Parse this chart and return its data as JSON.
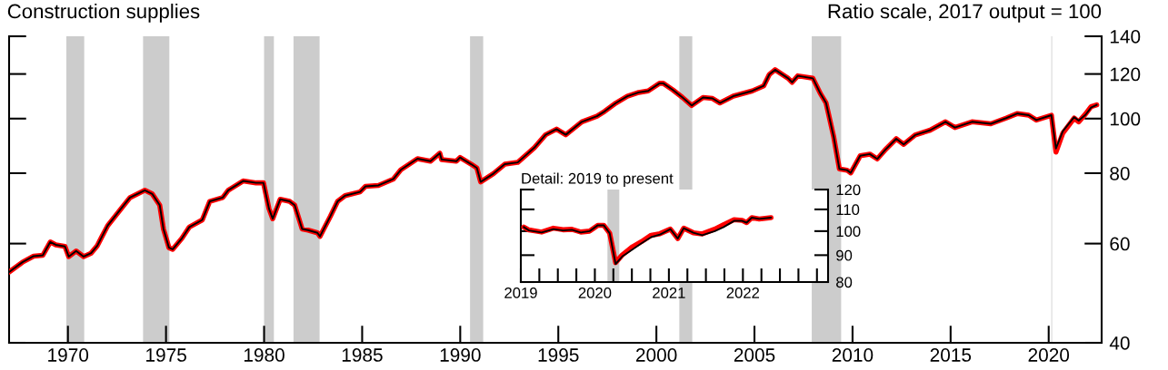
{
  "chart_data": [
    {
      "type": "line",
      "title": "Construction supplies",
      "subtitle": "Ratio scale, 2017 output = 100",
      "x": [
        1967.0,
        1967.68,
        1968.25,
        1968.72,
        1969.1,
        1969.38,
        1969.85,
        1970.04,
        1970.42,
        1970.8,
        1971.18,
        1971.5,
        1971.74,
        1972.03,
        1972.78,
        1973.16,
        1973.92,
        1974.3,
        1974.68,
        1974.87,
        1975.15,
        1975.34,
        1975.81,
        1976.19,
        1976.85,
        1977.23,
        1977.89,
        1978.17,
        1978.93,
        1979.59,
        1979.97,
        1980.25,
        1980.44,
        1980.82,
        1981.3,
        1981.56,
        1981.94,
        1982.24,
        1982.72,
        1982.85,
        1983.38,
        1983.75,
        1984.13,
        1984.89,
        1985.17,
        1985.83,
        1986.59,
        1986.97,
        1987.82,
        1988.48,
        1988.96,
        1989.05,
        1989.8,
        1989.99,
        1990.56,
        1990.85,
        1991.04,
        1991.7,
        1992.27,
        1992.93,
        1993.78,
        1994.35,
        1994.91,
        1995.38,
        1996.2,
        1996.97,
        1997.36,
        1997.94,
        1998.52,
        1999.1,
        1999.58,
        2000.16,
        2000.35,
        2000.83,
        2001.32,
        2001.8,
        2002.38,
        2002.86,
        2003.24,
        2003.92,
        2004.89,
        2005.47,
        2005.76,
        2006.05,
        2006.72,
        2006.92,
        2007.21,
        2007.98,
        2008.36,
        2008.65,
        2009.04,
        2009.33,
        2009.72,
        2009.91,
        2010.39,
        2010.88,
        2011.26,
        2011.65,
        2012.23,
        2012.61,
        2013.19,
        2013.96,
        2014.74,
        2015.22,
        2016.09,
        2017.05,
        2017.83,
        2018.41,
        2018.98,
        2019.37,
        2020.14,
        2020.37,
        2020.72,
        2021.3,
        2021.53,
        2021.88,
        2022.16,
        2022.45
      ],
      "series": [
        {
          "color": "#ff0000",
          "values": [
            53.4,
            55.6,
            57.0,
            57.2,
            60.4,
            59.7,
            59.3,
            56.9,
            58.2,
            56.9,
            57.7,
            59.5,
            61.8,
            64.6,
            69.7,
            72.4,
            74.6,
            73.5,
            70.2,
            63.7,
            59.0,
            58.6,
            61.3,
            64.2,
            66.1,
            71.3,
            72.4,
            74.6,
            77.5,
            76.9,
            76.9,
            69.2,
            66.4,
            71.9,
            71.3,
            70.2,
            63.7,
            63.4,
            62.7,
            61.8,
            67.1,
            71.3,
            73.0,
            74.1,
            75.8,
            76.1,
            78.1,
            81.1,
            84.9,
            84.0,
            86.8,
            84.6,
            84.0,
            85.3,
            83.0,
            81.7,
            77.2,
            79.9,
            83.0,
            83.6,
            88.8,
            93.6,
            95.8,
            93.6,
            98.7,
            101.0,
            103.0,
            106.6,
            109.6,
            111.3,
            112.0,
            115.5,
            115.5,
            112.5,
            109.1,
            105.5,
            109.0,
            108.6,
            106.6,
            109.6,
            112.0,
            114.3,
            119.8,
            122.1,
            117.9,
            116.0,
            119.1,
            117.9,
            110.8,
            106.6,
            92.8,
            81.4,
            81.0,
            80.1,
            85.9,
            86.5,
            84.8,
            87.9,
            92.1,
            90.0,
            93.5,
            95.4,
            98.7,
            96.4,
            98.7,
            97.9,
            100.2,
            102.1,
            101.4,
            99.4,
            101.4,
            87.2,
            94.2,
            100.2,
            98.7,
            101.9,
            105.0,
            105.8
          ]
        },
        {
          "color": "#000000",
          "values": [
            53.4,
            55.6,
            57.0,
            57.2,
            60.4,
            59.7,
            59.3,
            56.9,
            58.2,
            56.9,
            57.7,
            59.5,
            61.8,
            64.6,
            69.7,
            72.4,
            74.6,
            73.5,
            70.2,
            63.7,
            59.0,
            58.6,
            61.3,
            64.2,
            66.1,
            71.3,
            72.4,
            74.6,
            77.5,
            76.9,
            76.9,
            69.2,
            66.4,
            71.9,
            71.3,
            70.2,
            63.7,
            63.4,
            62.7,
            61.8,
            67.1,
            71.3,
            73.0,
            74.1,
            75.8,
            76.1,
            78.1,
            81.1,
            84.9,
            84.0,
            86.8,
            84.6,
            84.0,
            85.3,
            83.0,
            81.7,
            77.2,
            79.9,
            83.0,
            83.6,
            88.8,
            93.6,
            95.8,
            93.6,
            98.7,
            101.0,
            103.0,
            106.6,
            109.6,
            111.3,
            112.0,
            115.5,
            115.5,
            112.5,
            109.1,
            105.5,
            109.0,
            108.6,
            106.6,
            109.6,
            112.0,
            114.3,
            119.8,
            122.1,
            117.9,
            116.0,
            119.1,
            117.9,
            110.8,
            106.6,
            92.8,
            81.4,
            81.0,
            80.1,
            85.9,
            86.5,
            84.8,
            87.9,
            92.1,
            90.0,
            93.5,
            95.4,
            98.7,
            96.4,
            98.7,
            97.9,
            100.2,
            102.1,
            101.4,
            99.4,
            101.4,
            88.5,
            95.0,
            100.6,
            99.2,
            101.6,
            104.6,
            105.8
          ]
        }
      ],
      "xlim": [
        1967,
        2022.7
      ],
      "xticks": [
        1970,
        1975,
        1980,
        1985,
        1990,
        1995,
        2000,
        2005,
        2010,
        2015,
        2020
      ],
      "ylim": [
        40,
        140
      ],
      "yticks": [
        40,
        60,
        80,
        100,
        120,
        140
      ],
      "log": "y",
      "bands": [
        {
          "axis": "x",
          "from": 1969.92,
          "to": 1970.83,
          "color": "#cccccc"
        },
        {
          "axis": "x",
          "from": 1973.83,
          "to": 1975.17,
          "color": "#cccccc"
        },
        {
          "axis": "x",
          "from": 1980.0,
          "to": 1980.5,
          "color": "#cccccc"
        },
        {
          "axis": "x",
          "from": 1981.5,
          "to": 1982.83,
          "color": "#cccccc"
        },
        {
          "axis": "x",
          "from": 1990.5,
          "to": 1991.17,
          "color": "#cccccc"
        },
        {
          "axis": "x",
          "from": 2001.17,
          "to": 2001.83,
          "color": "#cccccc"
        },
        {
          "axis": "x",
          "from": 2007.92,
          "to": 2009.42,
          "color": "#cccccc"
        },
        {
          "axis": "x",
          "from": 2020.12,
          "to": 2020.2,
          "color": "#e6e6e6"
        }
      ]
    },
    {
      "type": "line",
      "title": "Detail: 2019 to present",
      "x": [
        2019.04,
        2019.11,
        2019.28,
        2019.44,
        2019.57,
        2019.69,
        2019.81,
        2019.93,
        2020.04,
        2020.12,
        2020.2,
        2020.28,
        2020.37,
        2020.51,
        2020.63,
        2020.76,
        2020.88,
        2021.02,
        2021.12,
        2021.2,
        2021.33,
        2021.45,
        2021.62,
        2021.74,
        2021.88,
        2021.99,
        2022.05,
        2022.12,
        2022.22,
        2022.38
      ],
      "series": [
        {
          "color": "#ff0000",
          "values": [
            101.8,
            100.5,
            99.6,
            101.3,
            100.6,
            100.8,
            99.6,
            100.0,
            102.6,
            102.6,
            99.1,
            87.1,
            90.1,
            93.4,
            95.5,
            98.2,
            98.9,
            100.9,
            96.8,
            101.3,
            99.3,
            98.8,
            100.9,
            102.9,
            105.1,
            104.8,
            103.8,
            106.1,
            105.5,
            106.1
          ]
        },
        {
          "color": "#000000",
          "values": [
            101.8,
            100.3,
            99.4,
            100.9,
            100.3,
            100.6,
            99.4,
            100.0,
            102.6,
            102.6,
            99.1,
            86.6,
            89.5,
            92.3,
            94.8,
            97.4,
            98.5,
            100.9,
            96.8,
            101.3,
            99.3,
            98.2,
            100.0,
            101.8,
            104.6,
            104.6,
            103.8,
            106.1,
            105.5,
            106.1
          ]
        }
      ],
      "xlim": [
        2019,
        2023.15
      ],
      "xticks": [
        2019,
        {
          "value": 2019.25,
          "label": null
        },
        {
          "value": 2019.5,
          "label": null
        },
        {
          "value": 2019.75,
          "label": null
        },
        2020,
        {
          "value": 2020.25,
          "label": null
        },
        {
          "value": 2020.5,
          "label": null
        },
        {
          "value": 2020.75,
          "label": null
        },
        2021,
        {
          "value": 2021.25,
          "label": null
        },
        {
          "value": 2021.5,
          "label": null
        },
        {
          "value": 2021.75,
          "label": null
        },
        2022,
        {
          "value": 2022.25,
          "label": null
        },
        {
          "value": 2022.5,
          "label": null
        },
        {
          "value": 2022.75,
          "label": null
        },
        {
          "value": 2023,
          "label": null
        }
      ],
      "ylim": [
        80,
        120
      ],
      "yticks": [
        80,
        90,
        100,
        110,
        120
      ],
      "log": "y",
      "bands": [
        {
          "axis": "x",
          "from": 2020.17,
          "to": 2020.33,
          "color": "#cccccc"
        }
      ]
    }
  ]
}
